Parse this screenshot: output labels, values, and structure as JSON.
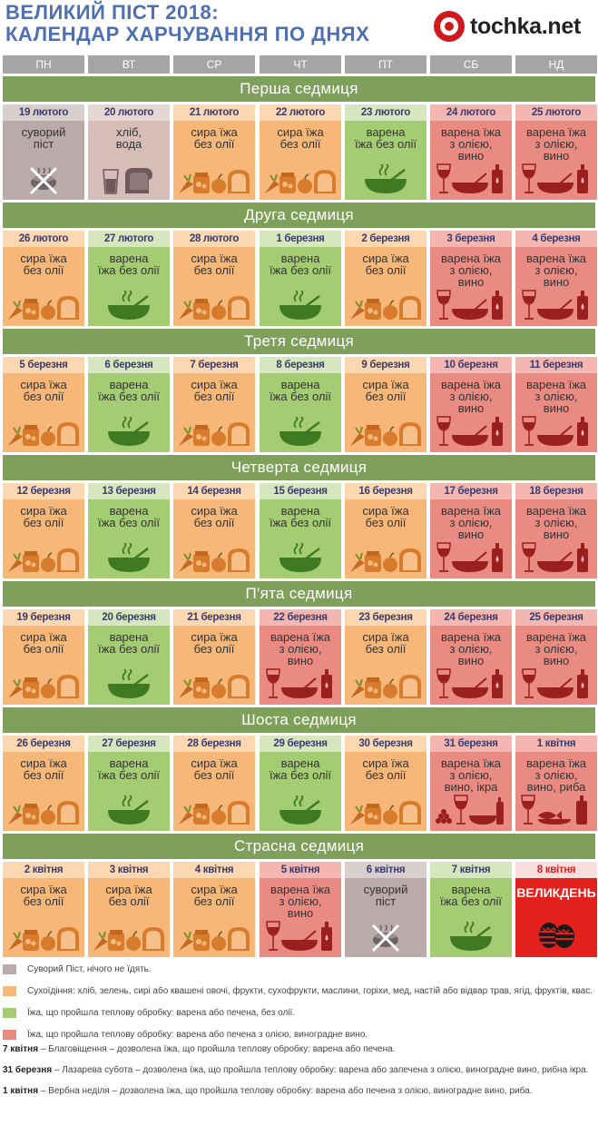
{
  "header": {
    "title_line1": "ВЕЛИКИЙ ПІСТ 2018:",
    "title_line2": "КАЛЕНДАР ХАРЧУВАННЯ ПО ДНЯХ",
    "logo_text": "tochka.net"
  },
  "days": [
    "ПН",
    "ВТ",
    "СР",
    "ЧТ",
    "ПТ",
    "СБ",
    "НД"
  ],
  "cell_texts": {
    "strict": [
      "суворий",
      "піст"
    ],
    "bread": [
      "хліб,",
      "вода"
    ],
    "dry": [
      "сира їжа",
      "без олії"
    ],
    "boiled": [
      "варена",
      "їжа без олії"
    ],
    "oil": [
      "варена їжа",
      "з олією,",
      "вино"
    ],
    "oil_caviar": [
      "варена їжа",
      "з олією,",
      "вино, ікра"
    ],
    "oil_fish": [
      "варена їжа",
      "з олією,",
      "вино, риба"
    ],
    "easter": [
      "ВЕЛИКДЕНЬ"
    ]
  },
  "colors": {
    "strict": "#bbaaaa",
    "dry": "#f6b779",
    "boiled": "#a4cc73",
    "oil": "#e98b82",
    "easter": "#e3201b",
    "week_band": "#7ea05a",
    "title": "#4f6fb0",
    "logo_red": "#d0181f"
  },
  "weeks": [
    {
      "title": "Перша седмиця",
      "days": [
        {
          "date": "19 лютого",
          "type": "strict",
          "text": "strict",
          "icon": "no-food-icon"
        },
        {
          "date": "20 лютого",
          "type": "strict-light",
          "text": "bread",
          "icon": "water-bread-icon"
        },
        {
          "date": "21 лютого",
          "type": "dry",
          "text": "dry",
          "icon": "raw-food-icon"
        },
        {
          "date": "22 лютого",
          "type": "dry",
          "text": "dry",
          "icon": "raw-food-icon"
        },
        {
          "date": "23 лютого",
          "type": "boiled",
          "text": "boiled",
          "icon": "soup-icon"
        },
        {
          "date": "24 лютого",
          "type": "oil",
          "text": "oil",
          "icon": "wine-oil-icon"
        },
        {
          "date": "25 лютого",
          "type": "oil",
          "text": "oil",
          "icon": "wine-oil-icon"
        }
      ]
    },
    {
      "title": "Друга седмиця",
      "days": [
        {
          "date": "26 лютого",
          "type": "dry",
          "text": "dry",
          "icon": "raw-food-icon"
        },
        {
          "date": "27 лютого",
          "type": "boiled",
          "text": "boiled",
          "icon": "soup-icon"
        },
        {
          "date": "28 лютого",
          "type": "dry",
          "text": "dry",
          "icon": "raw-food-icon"
        },
        {
          "date": "1 березня",
          "type": "boiled",
          "text": "boiled",
          "icon": "soup-icon"
        },
        {
          "date": "2 березня",
          "type": "dry",
          "text": "dry",
          "icon": "raw-food-icon"
        },
        {
          "date": "3 березня",
          "type": "oil",
          "text": "oil",
          "icon": "wine-oil-icon"
        },
        {
          "date": "4 березня",
          "type": "oil",
          "text": "oil",
          "icon": "wine-oil-icon"
        }
      ]
    },
    {
      "title": "Третя седмиця",
      "days": [
        {
          "date": "5 березня",
          "type": "dry",
          "text": "dry",
          "icon": "raw-food-icon"
        },
        {
          "date": "6 березня",
          "type": "boiled",
          "text": "boiled",
          "icon": "soup-icon"
        },
        {
          "date": "7 березня",
          "type": "dry",
          "text": "dry",
          "icon": "raw-food-icon"
        },
        {
          "date": "8 березня",
          "type": "boiled",
          "text": "boiled",
          "icon": "soup-icon"
        },
        {
          "date": "9 березня",
          "type": "dry",
          "text": "dry",
          "icon": "raw-food-icon"
        },
        {
          "date": "10 березня",
          "type": "oil",
          "text": "oil",
          "icon": "wine-oil-icon"
        },
        {
          "date": "11 березня",
          "type": "oil",
          "text": "oil",
          "icon": "wine-oil-icon"
        }
      ]
    },
    {
      "title": "Четверта седмиця",
      "days": [
        {
          "date": "12 березня",
          "type": "dry",
          "text": "dry",
          "icon": "raw-food-icon"
        },
        {
          "date": "13 березня",
          "type": "boiled",
          "text": "boiled",
          "icon": "soup-icon"
        },
        {
          "date": "14 березня",
          "type": "dry",
          "text": "dry",
          "icon": "raw-food-icon"
        },
        {
          "date": "15 березня",
          "type": "boiled",
          "text": "boiled",
          "icon": "soup-icon"
        },
        {
          "date": "16 березня",
          "type": "dry",
          "text": "dry",
          "icon": "raw-food-icon"
        },
        {
          "date": "17 березня",
          "type": "oil",
          "text": "oil",
          "icon": "wine-oil-icon"
        },
        {
          "date": "18 березня",
          "type": "oil",
          "text": "oil",
          "icon": "wine-oil-icon"
        }
      ]
    },
    {
      "title": "П'ята седмиця",
      "days": [
        {
          "date": "19 березня",
          "type": "dry",
          "text": "dry",
          "icon": "raw-food-icon"
        },
        {
          "date": "20 березня",
          "type": "boiled",
          "text": "boiled",
          "icon": "soup-icon"
        },
        {
          "date": "21 березня",
          "type": "dry",
          "text": "dry",
          "icon": "raw-food-icon"
        },
        {
          "date": "22 березня",
          "type": "oil",
          "text": "oil",
          "icon": "wine-oil-icon"
        },
        {
          "date": "23 березня",
          "type": "dry",
          "text": "dry",
          "icon": "raw-food-icon"
        },
        {
          "date": "24 березня",
          "type": "oil",
          "text": "oil",
          "icon": "wine-oil-icon"
        },
        {
          "date": "25 березня",
          "type": "oil",
          "text": "oil",
          "icon": "wine-oil-icon"
        }
      ]
    },
    {
      "title": "Шоста седмиця",
      "days": [
        {
          "date": "26 березня",
          "type": "dry",
          "text": "dry",
          "icon": "raw-food-icon"
        },
        {
          "date": "27 березня",
          "type": "boiled",
          "text": "boiled",
          "icon": "soup-icon"
        },
        {
          "date": "28 березня",
          "type": "dry",
          "text": "dry",
          "icon": "raw-food-icon"
        },
        {
          "date": "29 березня",
          "type": "boiled",
          "text": "boiled",
          "icon": "soup-icon"
        },
        {
          "date": "30 березня",
          "type": "dry",
          "text": "dry",
          "icon": "raw-food-icon"
        },
        {
          "date": "31 березня",
          "type": "oil",
          "text": "oil_caviar",
          "icon": "wine-caviar-icon"
        },
        {
          "date": "1 квітня",
          "type": "oil",
          "text": "oil_fish",
          "icon": "wine-fish-icon"
        }
      ]
    },
    {
      "title": "Страсна седмиця",
      "days": [
        {
          "date": "2 квітня",
          "type": "dry",
          "text": "dry",
          "icon": "raw-food-icon"
        },
        {
          "date": "3 квітня",
          "type": "dry",
          "text": "dry",
          "icon": "raw-food-icon"
        },
        {
          "date": "4 квітня",
          "type": "dry",
          "text": "dry",
          "icon": "raw-food-icon"
        },
        {
          "date": "5 квітня",
          "type": "oil",
          "text": "oil",
          "icon": "wine-oil-icon"
        },
        {
          "date": "6 квітня",
          "type": "strict",
          "text": "strict",
          "icon": "no-food-icon"
        },
        {
          "date": "7 квітня",
          "type": "boiled",
          "text": "boiled",
          "icon": "soup-icon"
        },
        {
          "date": "8 квітня",
          "type": "easter",
          "text": "easter",
          "icon": "easter-eggs-icon"
        }
      ]
    }
  ],
  "legend": [
    {
      "type": "strict",
      "text": "Суворий Піст, нічого не їдять."
    },
    {
      "type": "dry",
      "text": "Сухоїдіння: хліб, зелень, сирі або квашені овочі, фрукти, сухофрукти, маслини, горіхи, мед, настій або відвар трав, ягід, фруктів, квас."
    },
    {
      "type": "boiled",
      "text": "Їжа, що пройшла теплову обробку: варена або печена, без олії."
    },
    {
      "type": "oil",
      "text": "Їжа, що пройшла теплову обробку: варена або печена з олією, виноградне вино."
    }
  ],
  "notes": [
    {
      "date": "7 квітня",
      "text": " – Благовіщення – дозволена їжа, що пройшла теплову обробку: варена або печена."
    },
    {
      "date": "31 березня",
      "text": " – Лазарева субота – дозволена їжа, що пройшла теплову обробку: варена або запечена з олією, виноградне вино, рибна ікра."
    },
    {
      "date": "1 квітня",
      "text": " – Вербна неділя – дозволена їжа, що пройшла теплову обробку: варена або печена з олією, виноградне вино, риба."
    }
  ]
}
